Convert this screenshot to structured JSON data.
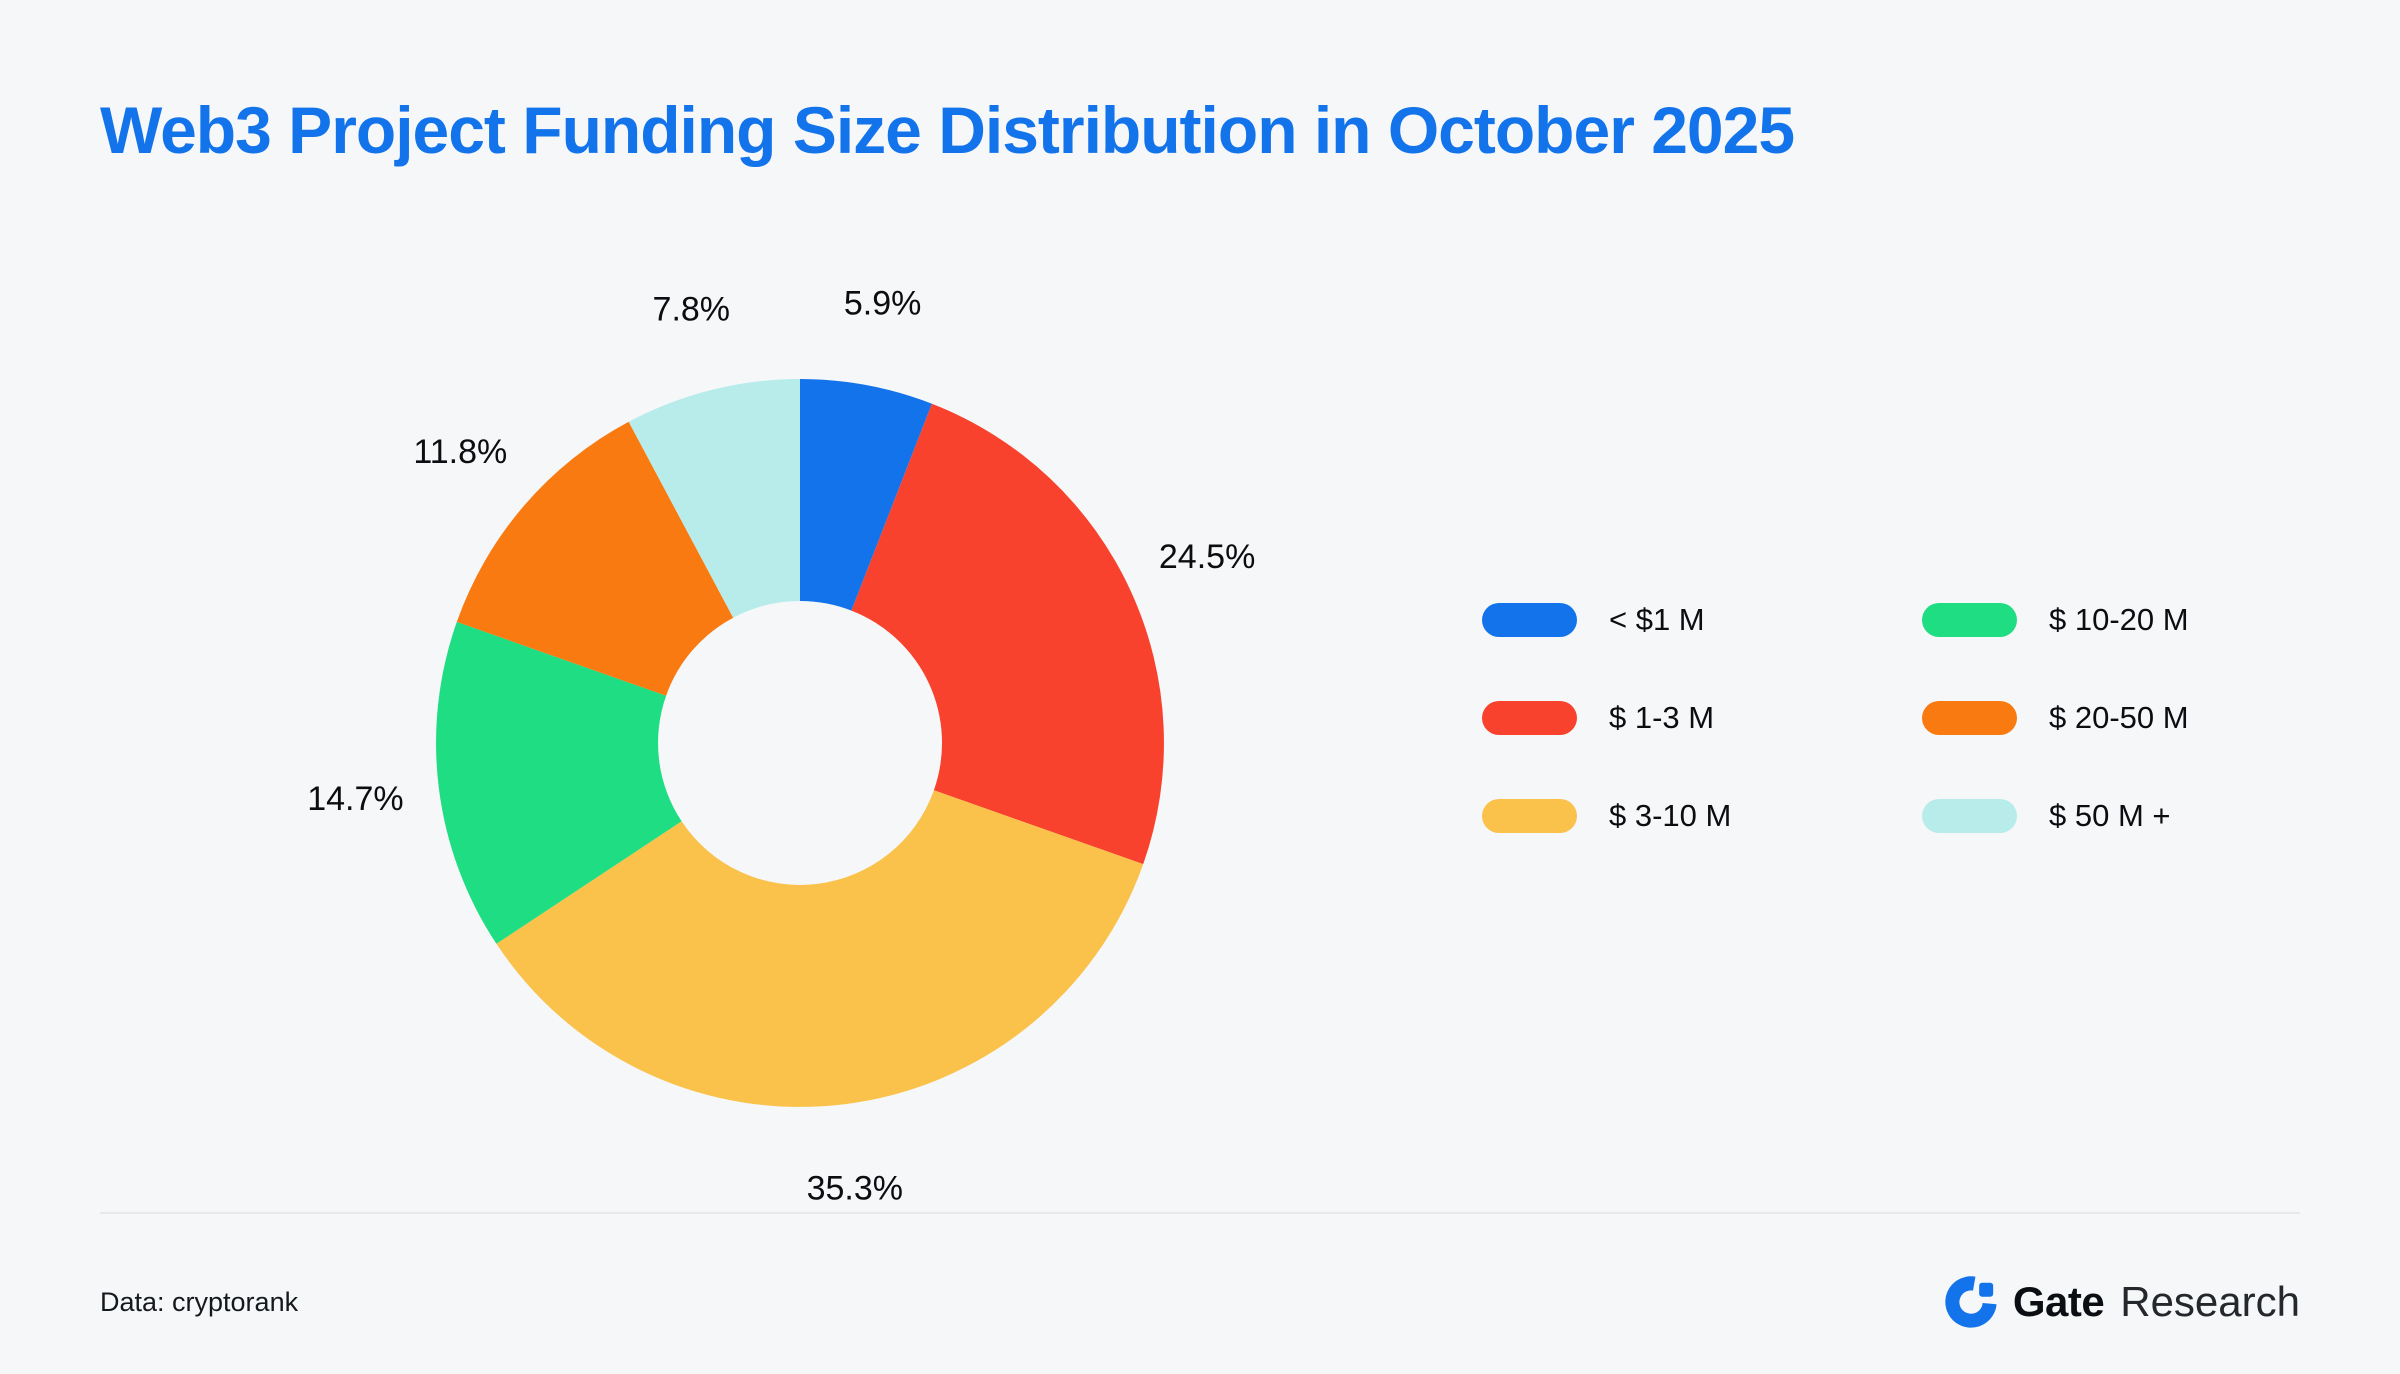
{
  "page": {
    "title": "Web3 Project Funding Size Distribution in October 2025",
    "source": "Data: cryptorank",
    "brand": {
      "bold": "Gate",
      "regular": "Research"
    }
  },
  "colors": {
    "background": "#f5f7f8",
    "title": "#1373eb",
    "text": "#0b0d10",
    "divider": "#e6e9ec",
    "brand_blue": "#1373eb"
  },
  "chart_data": {
    "type": "pie",
    "donut": true,
    "title": "Web3 Project Funding Size Distribution in October 2025",
    "categories": [
      "< $1 M",
      "$ 1-3 M",
      "$ 3-10 M",
      "$ 10-20 M",
      "$ 20-50 M",
      "$ 50 M +"
    ],
    "values": [
      5.9,
      24.5,
      35.3,
      14.7,
      11.8,
      7.8
    ],
    "labels": [
      "5.9%",
      "24.5%",
      "35.3%",
      "14.7%",
      "11.8%",
      "7.8%"
    ],
    "colors": [
      "#1373eb",
      "#f8422d",
      "#fac14b",
      "#1fdd82",
      "#f97a10",
      "#b8eceb"
    ],
    "unit": "%",
    "start_angle_deg": 0,
    "direction": "clockwise",
    "legend_position": "right",
    "source": "Data: cryptorank"
  }
}
